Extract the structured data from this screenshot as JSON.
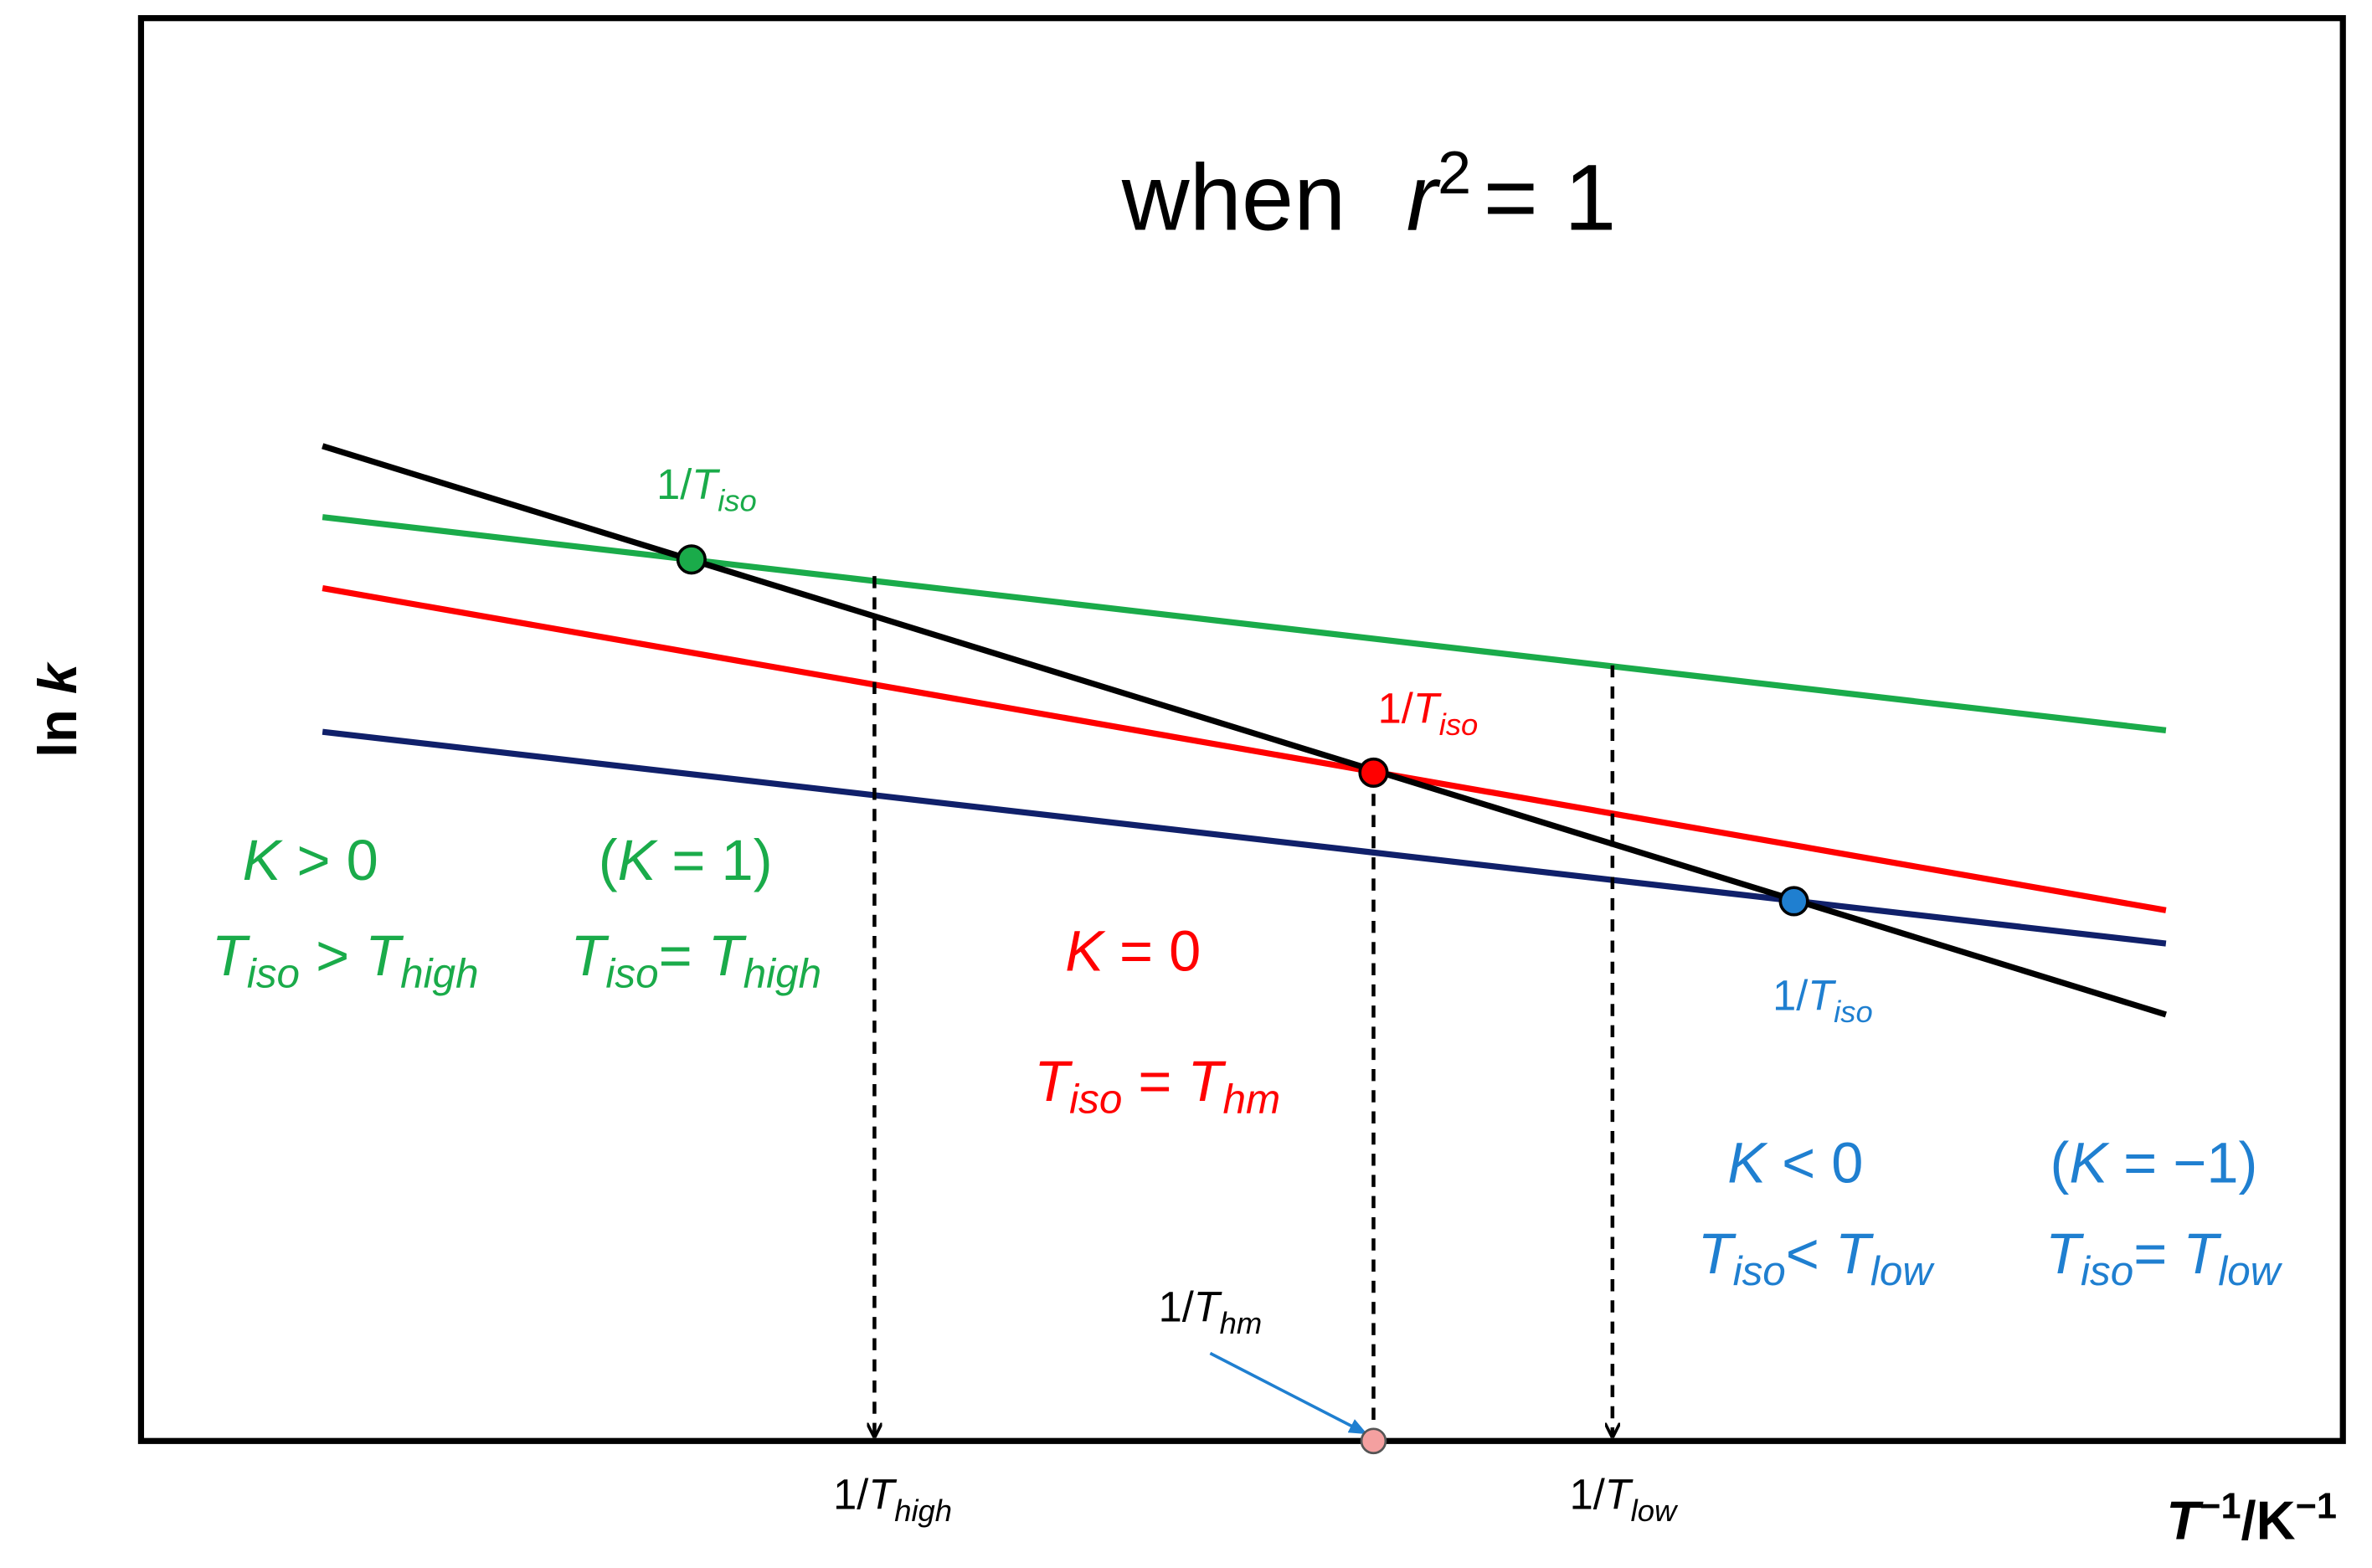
{
  "title": [
    "when",
    "r",
    "2",
    "= 1"
  ],
  "axes": {
    "y_label": [
      "ln ",
      "k"
    ],
    "x_label": [
      "T",
      "−1",
      "/K",
      "−1"
    ]
  },
  "points": {
    "green": [
      "1/",
      "T",
      "iso"
    ],
    "red": [
      "1/",
      "T",
      "iso"
    ],
    "blue": [
      "1/",
      "T",
      "iso"
    ],
    "hm": [
      "1/",
      "T",
      "hm"
    ]
  },
  "ticks": {
    "high": [
      "1/",
      "T",
      "high"
    ],
    "low": [
      "1/",
      "T",
      "low"
    ]
  },
  "notes": {
    "green_k": [
      "K",
      " > 0"
    ],
    "green_t": [
      "T",
      "iso",
      " > ",
      "T",
      "high"
    ],
    "green_k1": [
      "(",
      "K",
      " = 1)"
    ],
    "green_t1": [
      "T",
      "iso",
      "= ",
      "T",
      "high"
    ],
    "red_k": [
      "K",
      " = 0"
    ],
    "red_t": [
      "T",
      "iso",
      " = ",
      "T",
      "hm"
    ],
    "blue_k": [
      "K",
      " < 0"
    ],
    "blue_t": [
      "T",
      "iso",
      "< ",
      "T",
      "low"
    ],
    "blue_k1": [
      "(",
      "K",
      " = −1)"
    ],
    "blue_t1": [
      "T",
      "iso",
      "= ",
      "T",
      "low"
    ]
  }
}
